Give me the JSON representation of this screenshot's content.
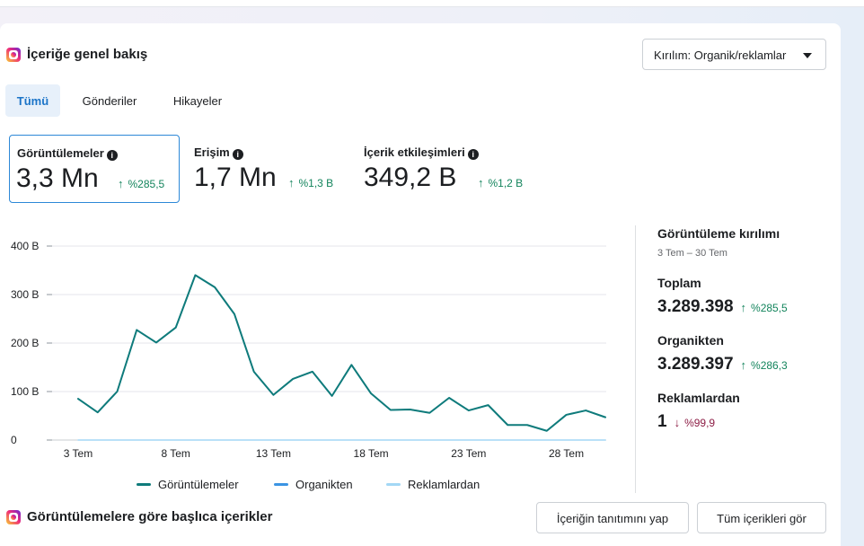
{
  "header": {
    "title": "İçeriğe genel bakış",
    "breakdown_dropdown": "Kırılım: Organik/reklamlar"
  },
  "tabs": [
    {
      "label": "Tümü",
      "active": true
    },
    {
      "label": "Gönderiler",
      "active": false
    },
    {
      "label": "Hikayeler",
      "active": false
    }
  ],
  "metrics": [
    {
      "label": "Görüntülemeler",
      "value": "3,3 Mn",
      "change": "%285,5",
      "direction": "up",
      "selected": true
    },
    {
      "label": "Erişim",
      "value": "1,7 Mn",
      "change": "%1,3 B",
      "direction": "up",
      "selected": false
    },
    {
      "label": "İçerik etkileşimleri",
      "value": "349,2 B",
      "change": "%1,2 B",
      "direction": "up",
      "selected": false
    }
  ],
  "chart_data": {
    "type": "line",
    "x": [
      3,
      4,
      5,
      6,
      7,
      8,
      9,
      10,
      11,
      12,
      13,
      14,
      15,
      16,
      17,
      18,
      19,
      20,
      21,
      22,
      23,
      24,
      25,
      26,
      27,
      28,
      29,
      30
    ],
    "x_tick_values": [
      3,
      8,
      13,
      18,
      23,
      28
    ],
    "x_tick_labels": [
      "3 Tem",
      "8 Tem",
      "13 Tem",
      "18 Tem",
      "23 Tem",
      "28 Tem"
    ],
    "y_tick_values": [
      0,
      100000,
      200000,
      300000,
      400000
    ],
    "y_tick_labels": [
      "0",
      "100 B",
      "200 B",
      "300 B",
      "400 B"
    ],
    "ylim": [
      0,
      400000
    ],
    "grid": true,
    "legend_position": "bottom",
    "series": [
      {
        "name": "Görüntülemeler",
        "color": "#0f7b7b",
        "values": [
          85000,
          57000,
          100000,
          227000,
          201000,
          232000,
          340000,
          315000,
          260000,
          141000,
          93000,
          126000,
          141000,
          91000,
          155000,
          96000,
          62000,
          63000,
          56000,
          87000,
          61000,
          72000,
          31000,
          31000,
          19000,
          52000,
          61000,
          47000
        ]
      },
      {
        "name": "Organikten",
        "color": "#3b94e3",
        "values": [
          85000,
          57000,
          100000,
          227000,
          201000,
          232000,
          340000,
          315000,
          260000,
          141000,
          93000,
          126000,
          141000,
          91000,
          155000,
          96000,
          62000,
          63000,
          56000,
          87000,
          61000,
          72000,
          31000,
          31000,
          19000,
          52000,
          61000,
          47000
        ]
      },
      {
        "name": "Reklamlardan",
        "color": "#a3d7f5",
        "values": [
          0,
          0,
          0,
          0,
          0,
          0,
          0,
          0,
          0,
          0,
          0,
          0,
          0,
          0,
          0,
          0,
          0,
          0,
          0,
          0,
          0,
          0,
          0,
          0,
          0,
          0,
          0,
          0
        ]
      }
    ]
  },
  "breakdown": {
    "title": "Görüntüleme kırılımı",
    "date_range": "3 Tem – 30 Tem",
    "items": [
      {
        "label": "Toplam",
        "value": "3.289.398",
        "change": "%285,5",
        "direction": "up"
      },
      {
        "label": "Organikten",
        "value": "3.289.397",
        "change": "%286,3",
        "direction": "up"
      },
      {
        "label": "Reklamlardan",
        "value": "1",
        "change": "%99,9",
        "direction": "down"
      }
    ]
  },
  "top_content": {
    "title": "Görüntülemelere göre başlıca içerikler",
    "promote_button": "İçeriğin tanıtımını yap",
    "see_all_button": "Tüm içerikleri gör"
  }
}
